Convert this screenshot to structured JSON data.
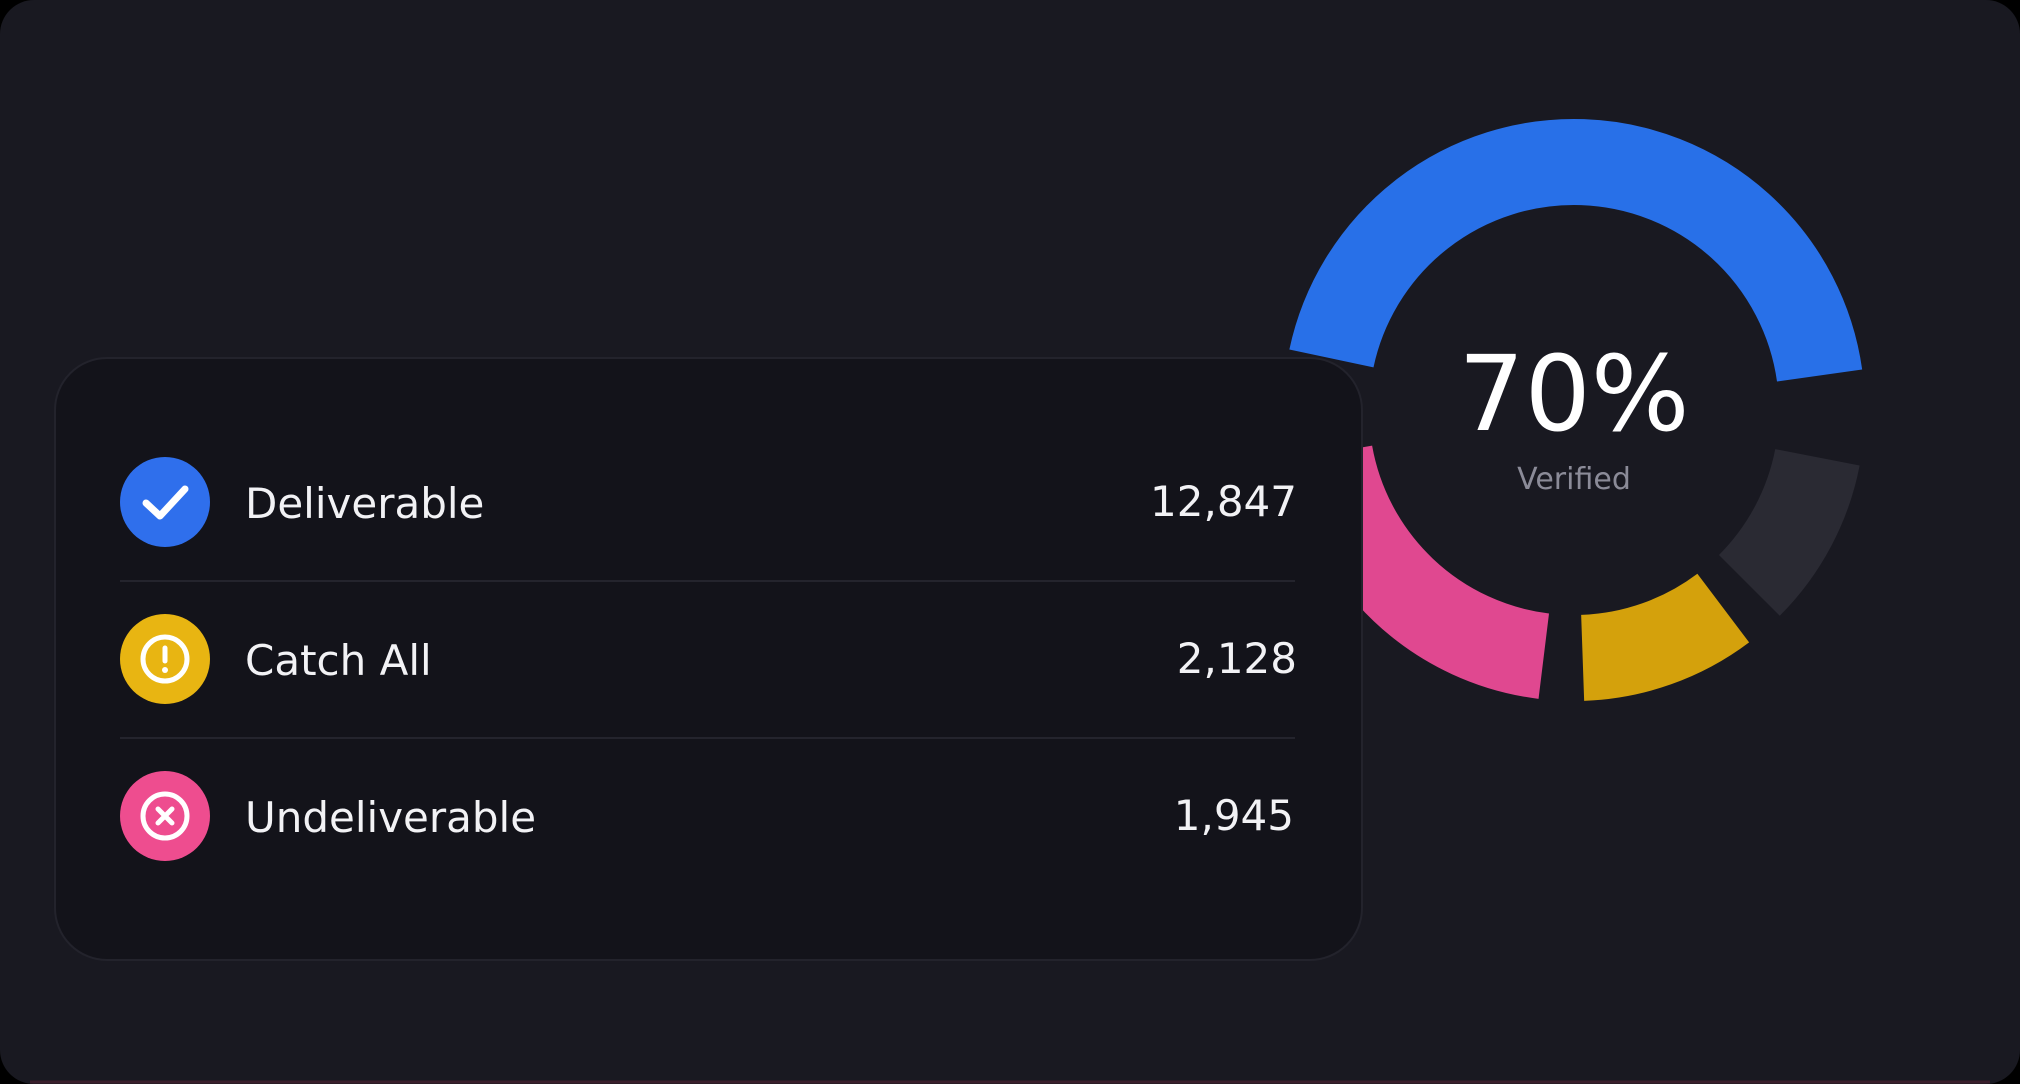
{
  "center": {
    "value": "70%",
    "label": "Verified"
  },
  "items": [
    {
      "label": "Deliverable",
      "value": "12,847"
    },
    {
      "label": "Catch All",
      "value": "2,128"
    },
    {
      "label": "Undeliverable",
      "value": "1,945"
    }
  ]
}
